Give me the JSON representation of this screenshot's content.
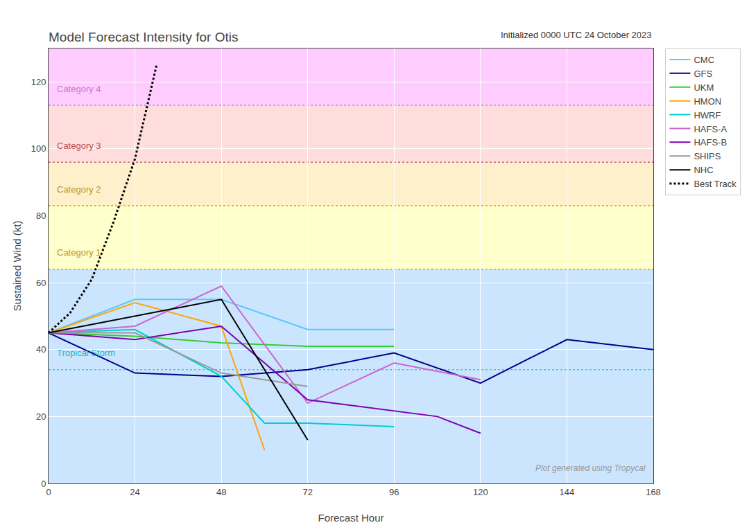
{
  "chart_data": {
    "type": "line",
    "title": "Model Forecast Intensity for Otis",
    "subtitle": "Initialized 0000 UTC 24 October 2023",
    "xlabel": "Forecast Hour",
    "ylabel": "Sustained Wind (kt)",
    "watermark": "Plot generated using Tropycal",
    "xlim": [
      0,
      168
    ],
    "ylim": [
      0,
      130
    ],
    "xticks": [
      0,
      24,
      48,
      72,
      96,
      120,
      144,
      168
    ],
    "yticks": [
      0,
      20,
      40,
      60,
      80,
      100,
      120
    ],
    "grid": true,
    "legend": "right",
    "bands": [
      {
        "from": 0,
        "to": 64,
        "color": "#cce5ff"
      },
      {
        "from": 64,
        "to": 83,
        "color": "#ffffcc"
      },
      {
        "from": 83,
        "to": 96,
        "color": "#fff0cc"
      },
      {
        "from": 96,
        "to": 113,
        "color": "#ffdddd"
      },
      {
        "from": 113,
        "to": 130,
        "color": "#ffccff"
      }
    ],
    "thresholds": [
      {
        "value": 34,
        "color": "#4dc8c8"
      },
      {
        "value": 64,
        "color": "#ccaa00"
      },
      {
        "value": 83,
        "color": "#ccaa00"
      },
      {
        "value": 96,
        "color": "#cc6666"
      },
      {
        "value": 113,
        "color": "#cc88cc"
      }
    ],
    "annotations": [
      {
        "text": "Tropical Storm",
        "x": 2,
        "y": 37,
        "color": "#2ab5b5"
      },
      {
        "text": "Category 1",
        "x": 2,
        "y": 67,
        "color": "#b8962e"
      },
      {
        "text": "Category 2",
        "x": 2,
        "y": 86,
        "color": "#b8962e"
      },
      {
        "text": "Category 3",
        "x": 2,
        "y": 99,
        "color": "#b85050"
      },
      {
        "text": "Category 4",
        "x": 2,
        "y": 116,
        "color": "#cc77cc"
      }
    ],
    "series": [
      {
        "name": "CMC",
        "color": "#5bc8f5",
        "x": [
          0,
          24,
          48,
          72,
          96
        ],
        "values": [
          45,
          55,
          55,
          46,
          46
        ]
      },
      {
        "name": "GFS",
        "color": "#00008b",
        "x": [
          0,
          24,
          48,
          72,
          96,
          120,
          144,
          168
        ],
        "values": [
          45,
          33,
          32,
          34,
          39,
          30,
          43,
          40
        ]
      },
      {
        "name": "UKM",
        "color": "#33cc33",
        "x": [
          0,
          24,
          48,
          72,
          96
        ],
        "values": [
          45,
          44,
          42,
          41,
          41
        ]
      },
      {
        "name": "HMON",
        "color": "#ffa500",
        "x": [
          0,
          24,
          48,
          60
        ],
        "values": [
          45,
          54,
          47,
          10
        ]
      },
      {
        "name": "HWRF",
        "color": "#00cdcd",
        "x": [
          0,
          24,
          48,
          60,
          72,
          96
        ],
        "values": [
          45,
          46,
          32,
          18,
          18,
          17
        ]
      },
      {
        "name": "HAFS-A",
        "color": "#cc66cc",
        "x": [
          0,
          24,
          48,
          72,
          96,
          120
        ],
        "values": [
          45,
          47,
          59,
          24,
          36,
          31
        ]
      },
      {
        "name": "HAFS-B",
        "color": "#7b00b0",
        "x": [
          0,
          24,
          48,
          72,
          108,
          120
        ],
        "values": [
          45,
          43,
          47,
          25,
          20,
          15
        ]
      },
      {
        "name": "SHIPS",
        "color": "#999999",
        "x": [
          0,
          24,
          48,
          72
        ],
        "values": [
          45,
          45,
          33,
          29
        ]
      },
      {
        "name": "NHC",
        "color": "#000000",
        "x": [
          0,
          24,
          48,
          72
        ],
        "values": [
          45,
          50,
          55,
          13
        ]
      },
      {
        "name": "Best Track",
        "color": "#000000",
        "line_style": "dotted",
        "x": [
          0,
          6,
          12,
          18,
          24,
          30
        ],
        "values": [
          45,
          51,
          61,
          78,
          97,
          125
        ]
      }
    ]
  }
}
